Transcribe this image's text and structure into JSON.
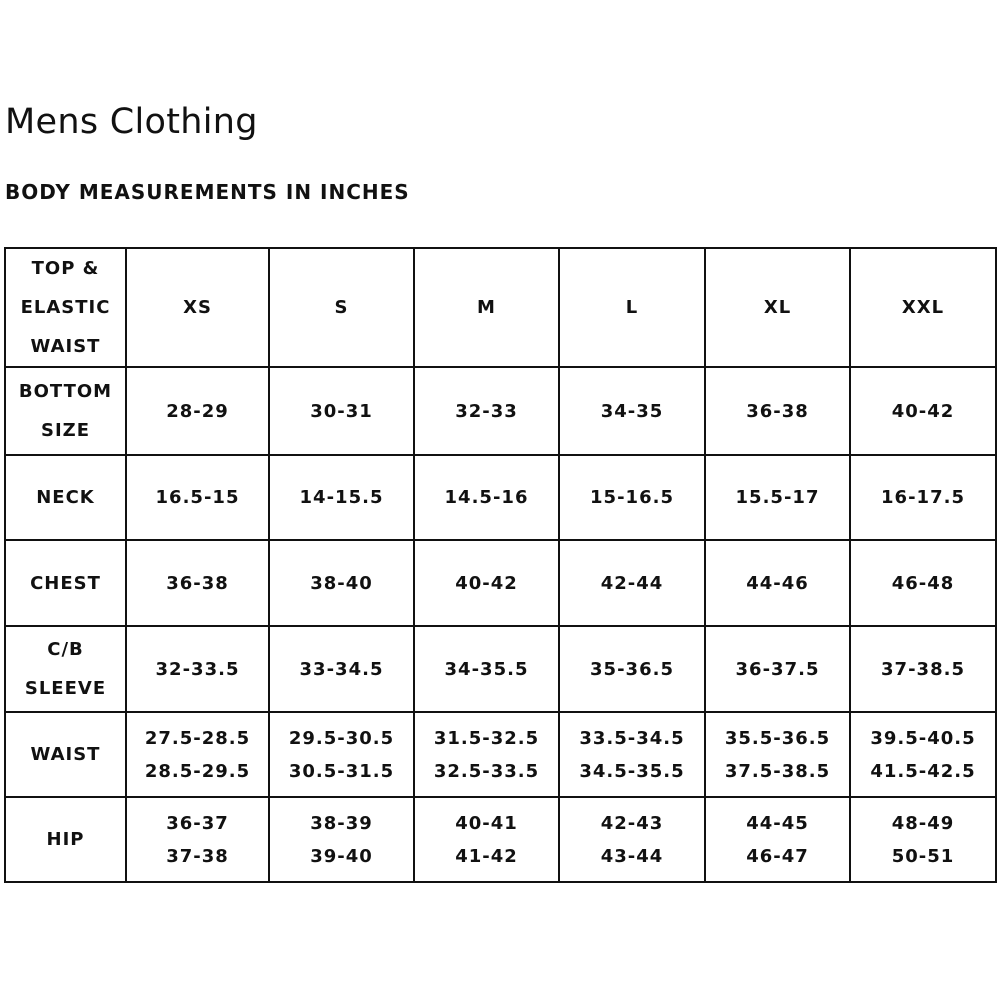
{
  "title": "Mens Clothing",
  "subtitle": "BODY MEASUREMENTS IN INCHES",
  "table": {
    "corner": [
      "TOP &",
      "ELASTIC",
      "WAIST"
    ],
    "sizes": [
      "XS",
      "S",
      "M",
      "L",
      "XL",
      "XXL"
    ],
    "rows": [
      {
        "label": [
          "BOTTOM",
          "SIZE"
        ],
        "values": [
          [
            "28-29"
          ],
          [
            "30-31"
          ],
          [
            "32-33"
          ],
          [
            "34-35"
          ],
          [
            "36-38"
          ],
          [
            "40-42"
          ]
        ]
      },
      {
        "label": [
          "NECK"
        ],
        "values": [
          [
            "16.5-15"
          ],
          [
            "14-15.5"
          ],
          [
            "14.5-16"
          ],
          [
            "15-16.5"
          ],
          [
            "15.5-17"
          ],
          [
            "16-17.5"
          ]
        ]
      },
      {
        "label": [
          "CHEST"
        ],
        "values": [
          [
            "36-38"
          ],
          [
            "38-40"
          ],
          [
            "40-42"
          ],
          [
            "42-44"
          ],
          [
            "44-46"
          ],
          [
            "46-48"
          ]
        ]
      },
      {
        "label": [
          "C/B",
          "SLEEVE"
        ],
        "values": [
          [
            "32-33.5"
          ],
          [
            "33-34.5"
          ],
          [
            "34-35.5"
          ],
          [
            "35-36.5"
          ],
          [
            "36-37.5"
          ],
          [
            "37-38.5"
          ]
        ]
      },
      {
        "label": [
          "WAIST"
        ],
        "values": [
          [
            "27.5-28.5",
            "28.5-29.5"
          ],
          [
            "29.5-30.5",
            "30.5-31.5"
          ],
          [
            "31.5-32.5",
            "32.5-33.5"
          ],
          [
            "33.5-34.5",
            "34.5-35.5"
          ],
          [
            "35.5-36.5",
            "37.5-38.5"
          ],
          [
            "39.5-40.5",
            "41.5-42.5"
          ]
        ]
      },
      {
        "label": [
          "HIP"
        ],
        "values": [
          [
            "36-37",
            "37-38"
          ],
          [
            "38-39",
            "39-40"
          ],
          [
            "40-41",
            "41-42"
          ],
          [
            "42-43",
            "43-44"
          ],
          [
            "44-45",
            "46-47"
          ],
          [
            "48-49",
            "50-51"
          ]
        ]
      }
    ]
  }
}
